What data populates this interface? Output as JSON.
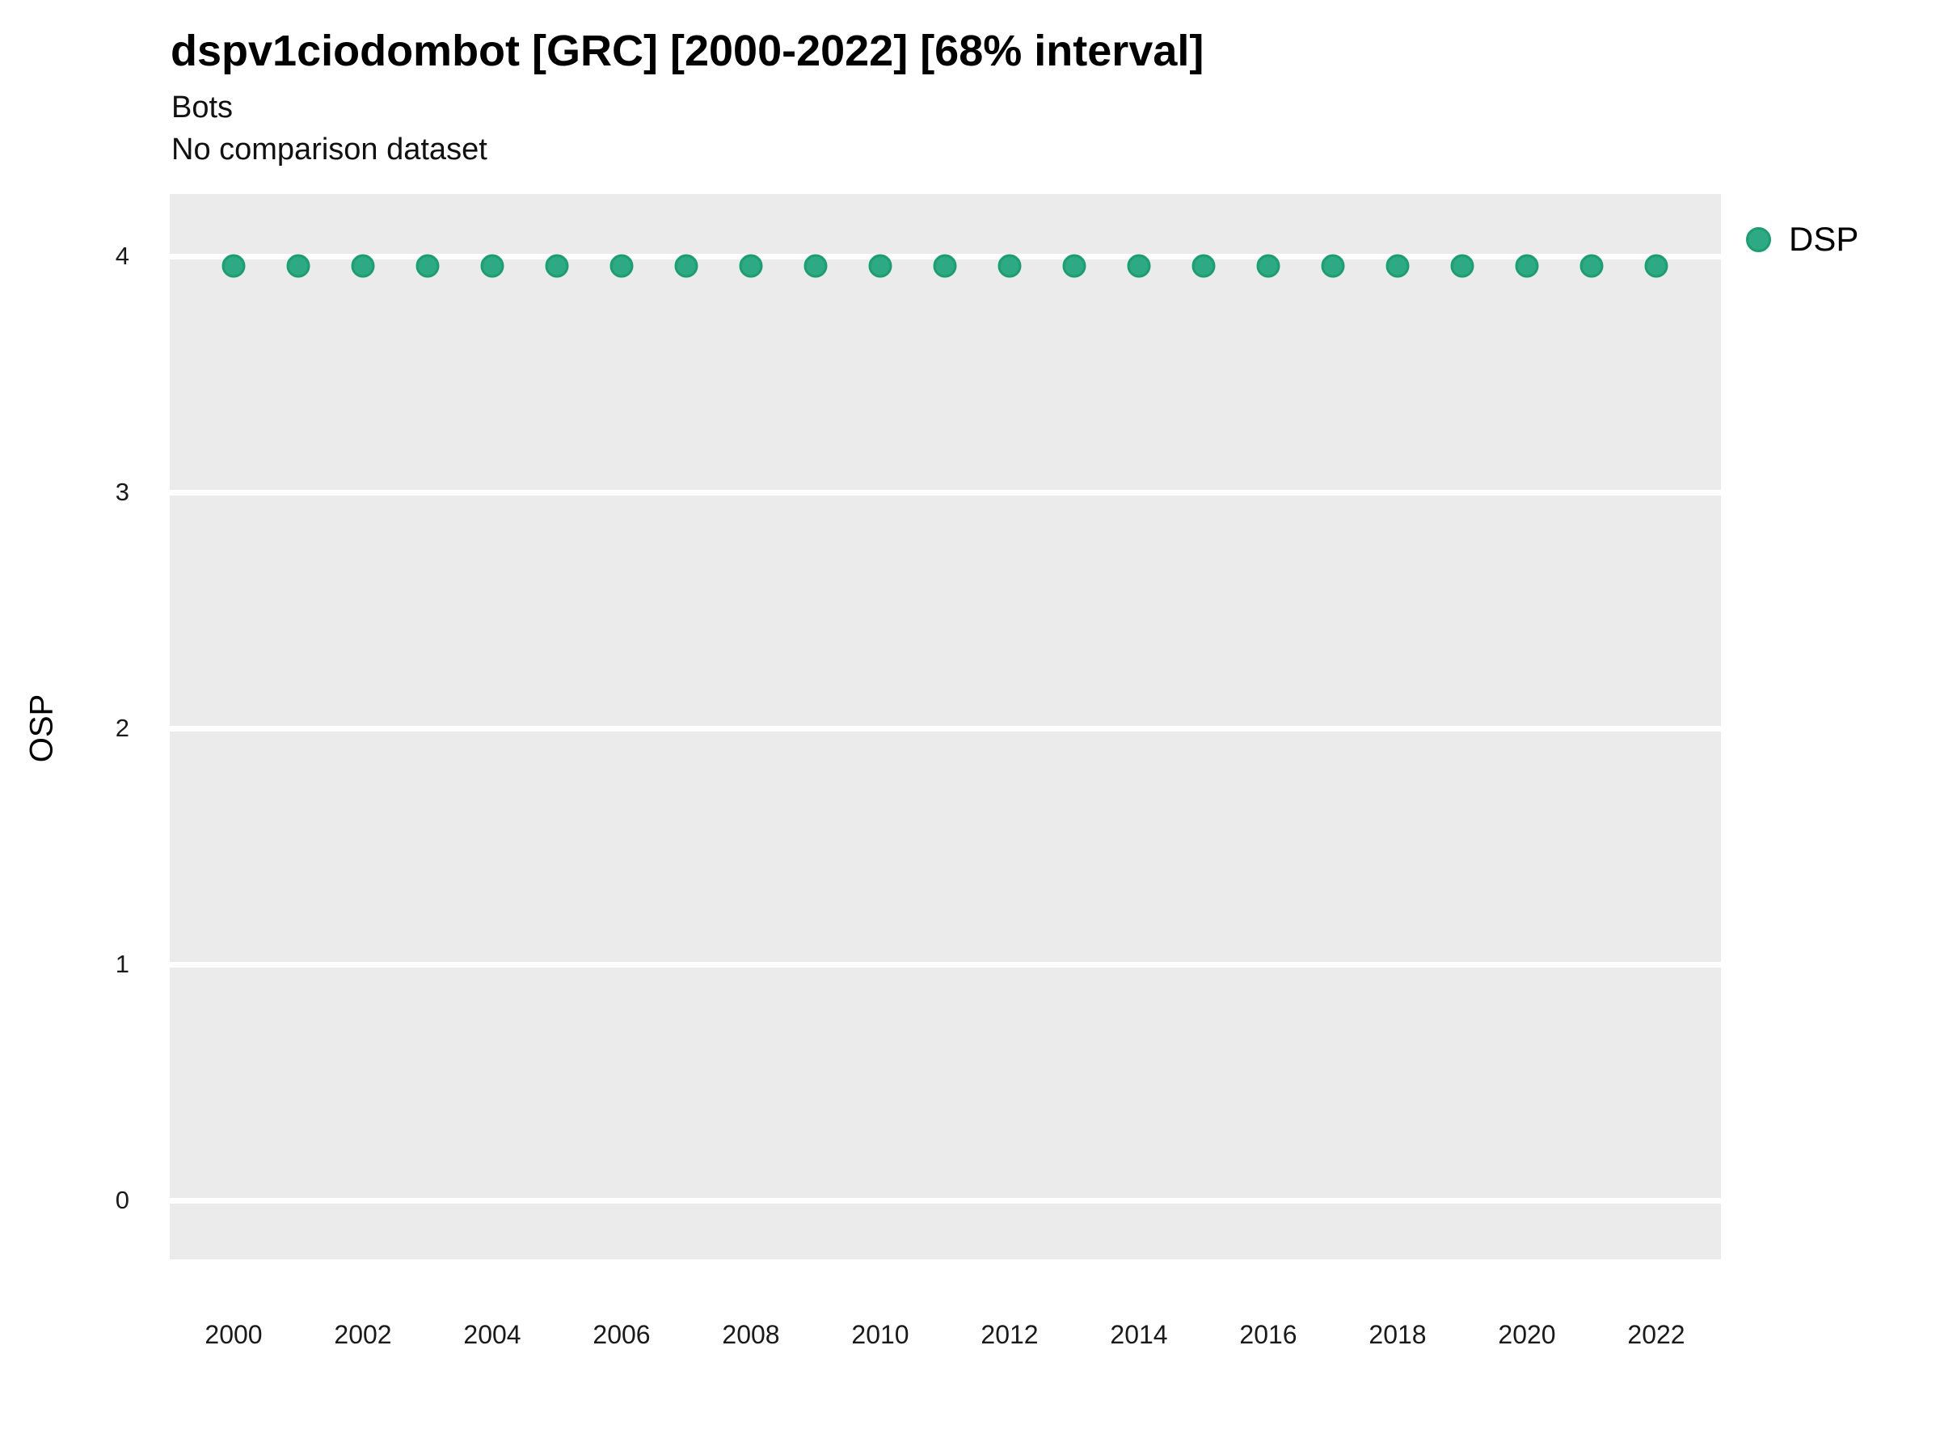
{
  "header": {
    "title": "dspv1ciodombot [GRC] [2000-2022] [68% interval]",
    "subtitle": "Bots",
    "note": "No comparison dataset"
  },
  "chart_data": {
    "type": "scatter",
    "title": "dspv1ciodombot [GRC] [2000-2022] [68% interval]",
    "subtitle": "Bots",
    "annotation": "No comparison dataset",
    "xlabel": "",
    "ylabel": "OSP",
    "x": [
      2000,
      2001,
      2002,
      2003,
      2004,
      2005,
      2006,
      2007,
      2008,
      2009,
      2010,
      2011,
      2012,
      2013,
      2014,
      2015,
      2016,
      2017,
      2018,
      2019,
      2020,
      2021,
      2022
    ],
    "series": [
      {
        "name": "DSP",
        "values": [
          3.96,
          3.96,
          3.96,
          3.96,
          3.96,
          3.96,
          3.96,
          3.96,
          3.96,
          3.96,
          3.96,
          3.96,
          3.96,
          3.96,
          3.96,
          3.96,
          3.96,
          3.96,
          3.96,
          3.96,
          3.96,
          3.96,
          3.96
        ]
      }
    ],
    "ylim": [
      -0.25,
      4.26
    ],
    "xlim": [
      1999,
      2023
    ],
    "yticks": [
      0,
      1,
      2,
      3,
      4
    ],
    "xticks": [
      2000,
      2002,
      2004,
      2006,
      2008,
      2010,
      2012,
      2014,
      2016,
      2018,
      2020,
      2022
    ],
    "grid": "horizontal major gridlines only, white on gray panel",
    "legend": {
      "position": "right",
      "entries": [
        {
          "label": "DSP",
          "color": "#2da984"
        }
      ]
    },
    "colors": {
      "panel_background": "#ebebeb",
      "gridline": "#ffffff",
      "point_fill": "#2da984",
      "point_stroke": "#1b9e72",
      "text": "#000000"
    }
  }
}
